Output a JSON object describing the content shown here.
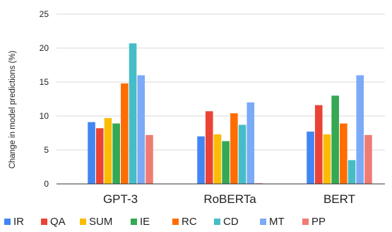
{
  "chart_data": {
    "type": "bar",
    "ylabel": "Change in model predictions (%)",
    "xlabel": "",
    "ylim": [
      0,
      25
    ],
    "yticks": [
      0,
      5,
      10,
      15,
      20,
      25
    ],
    "grid": true,
    "legend_position": "bottom",
    "categories": [
      "GPT-3",
      "RoBERTa",
      "BERT"
    ],
    "series": [
      {
        "name": "IR",
        "color": "#4285F4",
        "values": [
          9.1,
          7.0,
          7.7
        ]
      },
      {
        "name": "QA",
        "color": "#EA4335",
        "values": [
          8.2,
          10.7,
          11.6
        ]
      },
      {
        "name": "SUM",
        "color": "#FBBC04",
        "values": [
          9.7,
          7.3,
          7.3
        ]
      },
      {
        "name": "IE",
        "color": "#34A853",
        "values": [
          8.9,
          6.3,
          13.0
        ]
      },
      {
        "name": "RC",
        "color": "#FF6D01",
        "values": [
          14.8,
          10.4,
          8.9
        ]
      },
      {
        "name": "CD",
        "color": "#46BDC6",
        "values": [
          20.7,
          8.7,
          3.5
        ]
      },
      {
        "name": "MT",
        "color": "#7BAAF7",
        "values": [
          16.0,
          12.0,
          16.0
        ]
      },
      {
        "name": "PP",
        "color": "#F07B72",
        "values": [
          7.2,
          0.1,
          7.2
        ]
      }
    ]
  }
}
